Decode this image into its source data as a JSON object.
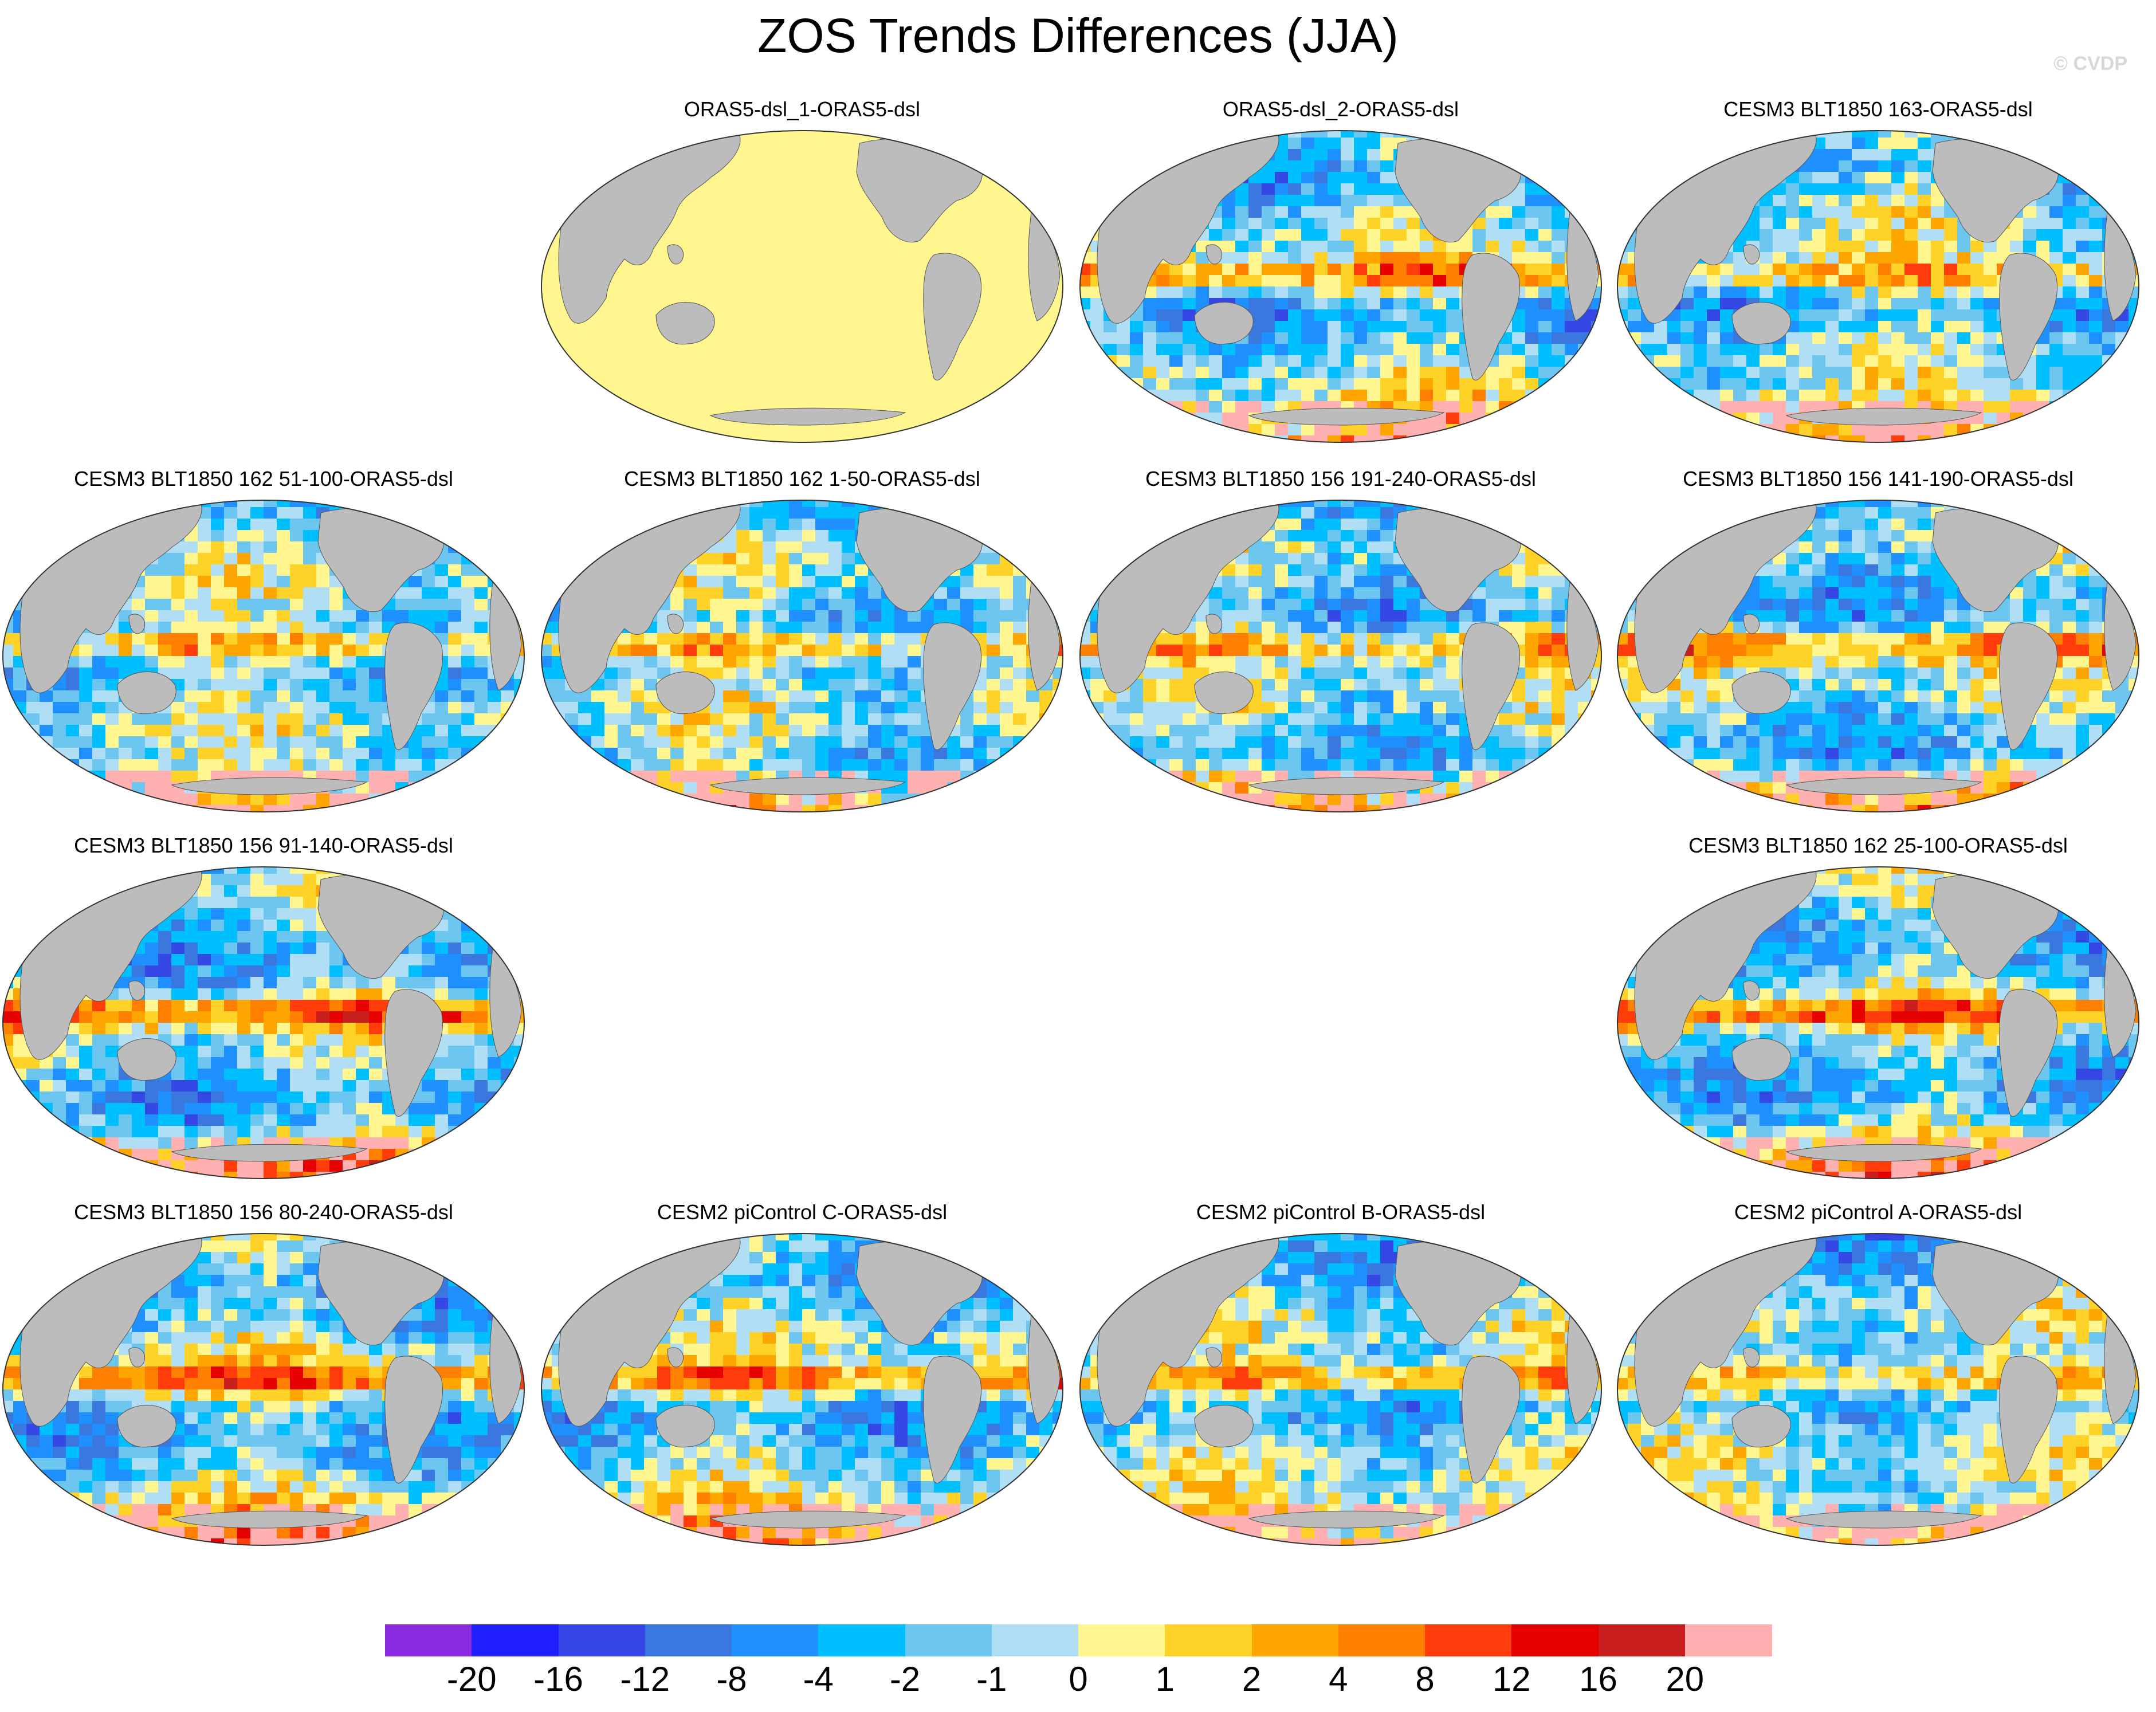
{
  "title": "ZOS Trends Differences (JJA)",
  "watermark": "© CVDP",
  "colorbar": {
    "colors": [
      "#8a2be2",
      "#1f1fff",
      "#3548e6",
      "#3a78e0",
      "#1e90ff",
      "#00bfff",
      "#6cc6f0",
      "#b0def4",
      "#fff68f",
      "#ffd228",
      "#ffa500",
      "#ff7f00",
      "#ff3c0a",
      "#e60000",
      "#c81e1e",
      "#ffb0b0"
    ],
    "labels": [
      "-20",
      "-16",
      "-12",
      "-8",
      "-4",
      "-2",
      "-1",
      "0",
      "1",
      "2",
      "4",
      "8",
      "12",
      "16",
      "20"
    ]
  },
  "panels": [
    {
      "title": "ORAS5-dsl_1-ORAS5-dsl"
    },
    {
      "title": "ORAS5-dsl_2-ORAS5-dsl"
    },
    {
      "title": "CESM3 BLT1850 163-ORAS5-dsl"
    },
    {
      "title": "CESM3 BLT1850 162 51-100-ORAS5-dsl"
    },
    {
      "title": "CESM3 BLT1850 162 1-50-ORAS5-dsl"
    },
    {
      "title": "CESM3 BLT1850 156 191-240-ORAS5-dsl"
    },
    {
      "title": "CESM3 BLT1850 156 141-190-ORAS5-dsl"
    },
    {
      "title": "CESM3 BLT1850 156 91-140-ORAS5-dsl"
    },
    {
      "title": "CESM3 BLT1850 162 25-100-ORAS5-dsl"
    },
    {
      "title": "CESM3 BLT1850 156 80-240-ORAS5-dsl"
    },
    {
      "title": "CESM2 piControl C-ORAS5-dsl"
    },
    {
      "title": "CESM2 piControl B-ORAS5-dsl"
    },
    {
      "title": "CESM2 piControl A-ORAS5-dsl"
    }
  ]
}
